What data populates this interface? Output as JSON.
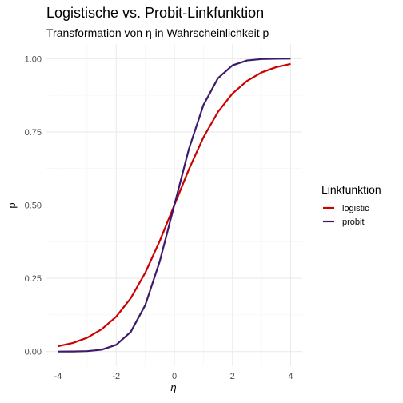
{
  "chart_data": {
    "type": "line",
    "title": "Logistische vs. Probit-Linkfunktion",
    "subtitle": "Transformation von η in Wahrscheinlichkeit p",
    "xlabel": "η",
    "ylabel": "p",
    "xlim": [
      -4.4,
      4.4
    ],
    "ylim": [
      -0.05,
      1.05
    ],
    "x_ticks": [
      -4,
      -2,
      0,
      2,
      4
    ],
    "x_tick_labels": [
      "-4",
      "-2",
      "0",
      "2",
      "4"
    ],
    "y_ticks": [
      0,
      0.25,
      0.5,
      0.75,
      1
    ],
    "y_tick_labels": [
      "0.00",
      "0.25",
      "0.50",
      "0.75",
      "1.00"
    ],
    "grid": true,
    "legend": {
      "title": "Linkfunktion",
      "position": "right"
    },
    "x": [
      -4,
      -3.5,
      -3,
      -2.5,
      -2,
      -1.5,
      -1,
      -0.5,
      0,
      0.5,
      1,
      1.5,
      2,
      2.5,
      3,
      3.5,
      4
    ],
    "series": [
      {
        "name": "logistic",
        "color": "#cc0000",
        "values": [
          0.018,
          0.029,
          0.047,
          0.076,
          0.119,
          0.182,
          0.269,
          0.378,
          0.5,
          0.622,
          0.731,
          0.818,
          0.881,
          0.924,
          0.953,
          0.971,
          0.982
        ]
      },
      {
        "name": "probit",
        "color": "#3f1a6b",
        "values": [
          3e-05,
          0.0002,
          0.0013,
          0.0062,
          0.0228,
          0.0668,
          0.1587,
          0.3085,
          0.5,
          0.6915,
          0.8413,
          0.9332,
          0.9772,
          0.9938,
          0.9987,
          0.9998,
          0.99997
        ]
      }
    ]
  }
}
